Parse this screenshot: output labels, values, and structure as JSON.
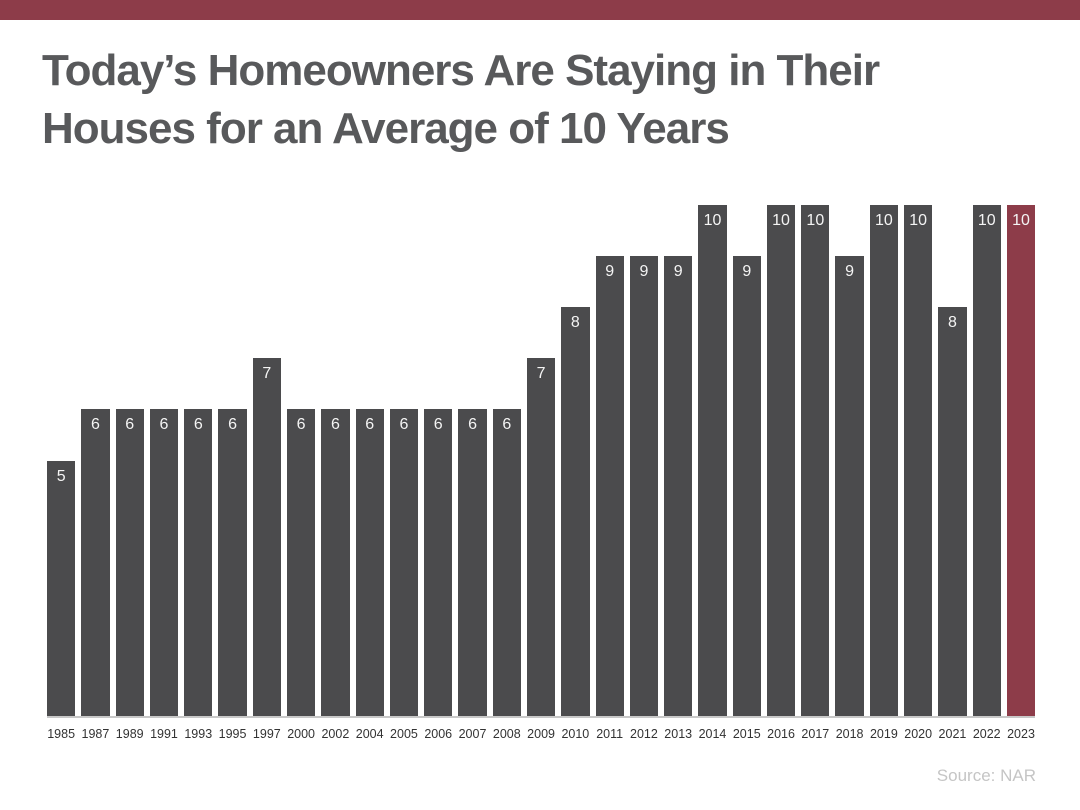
{
  "page": {
    "title_line1": "Today’s Homeowners Are Staying in Their",
    "title_line2": "Houses for an Average of 10 Years",
    "source": "Source: NAR"
  },
  "colors": {
    "accent_band": "#8d3c49",
    "bar_default": "#4b4b4d",
    "bar_highlight": "#8d3c49",
    "title_text": "#58595b",
    "axis_line": "#c8c8c8",
    "value_label_text": "#f4f4f4",
    "year_label_text": "#333333",
    "source_text": "#c5c5c5"
  },
  "chart_data": {
    "type": "bar",
    "title": "Today’s Homeowners Are Staying in Their Houses for an Average of 10 Years",
    "categories": [
      "1985",
      "1987",
      "1989",
      "1991",
      "1993",
      "1995",
      "1997",
      "2000",
      "2002",
      "2004",
      "2005",
      "2006",
      "2007",
      "2008",
      "2009",
      "2010",
      "2011",
      "2012",
      "2013",
      "2014",
      "2015",
      "2016",
      "2017",
      "2018",
      "2019",
      "2020",
      "2021",
      "2022",
      "2023"
    ],
    "values": [
      5,
      6,
      6,
      6,
      6,
      6,
      7,
      6,
      6,
      6,
      6,
      6,
      6,
      6,
      7,
      8,
      9,
      9,
      9,
      10,
      9,
      10,
      10,
      9,
      10,
      10,
      8,
      10,
      10
    ],
    "highlight_index": 28,
    "xlabel": "",
    "ylabel": "",
    "ylim": [
      0,
      10
    ],
    "grid": false,
    "legend": false,
    "value_labels": "inside-top",
    "source": "Source: NAR"
  }
}
